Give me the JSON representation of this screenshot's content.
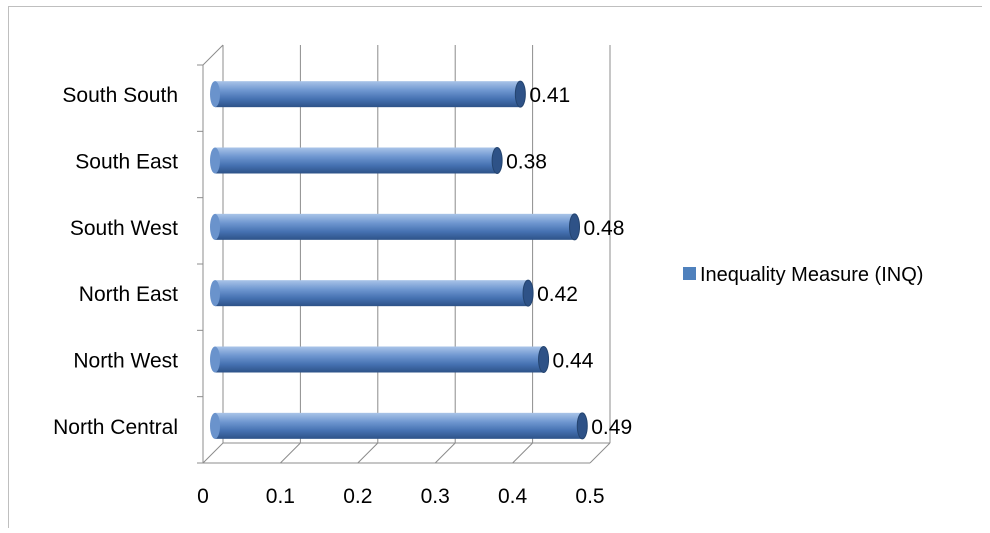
{
  "chart_data": {
    "type": "bar",
    "orientation": "horizontal",
    "style": "3d-cylinder",
    "categories": [
      "North Central",
      "North West",
      "North East",
      "South West",
      "South East",
      "South South"
    ],
    "series": [
      {
        "name": "Inequality Measure (INQ)",
        "values": [
          0.49,
          0.44,
          0.42,
          0.48,
          0.38,
          0.41
        ],
        "color": "#4f81bd"
      }
    ],
    "data_labels": [
      "0.49",
      "0.44",
      "0.42",
      "0.48",
      "0.38",
      "0.41"
    ],
    "x_ticks": [
      "0",
      "0.1",
      "0.2",
      "0.3",
      "0.4",
      "0.5"
    ],
    "xlim": [
      0,
      0.5
    ],
    "grid": true,
    "legend_position": "right"
  }
}
